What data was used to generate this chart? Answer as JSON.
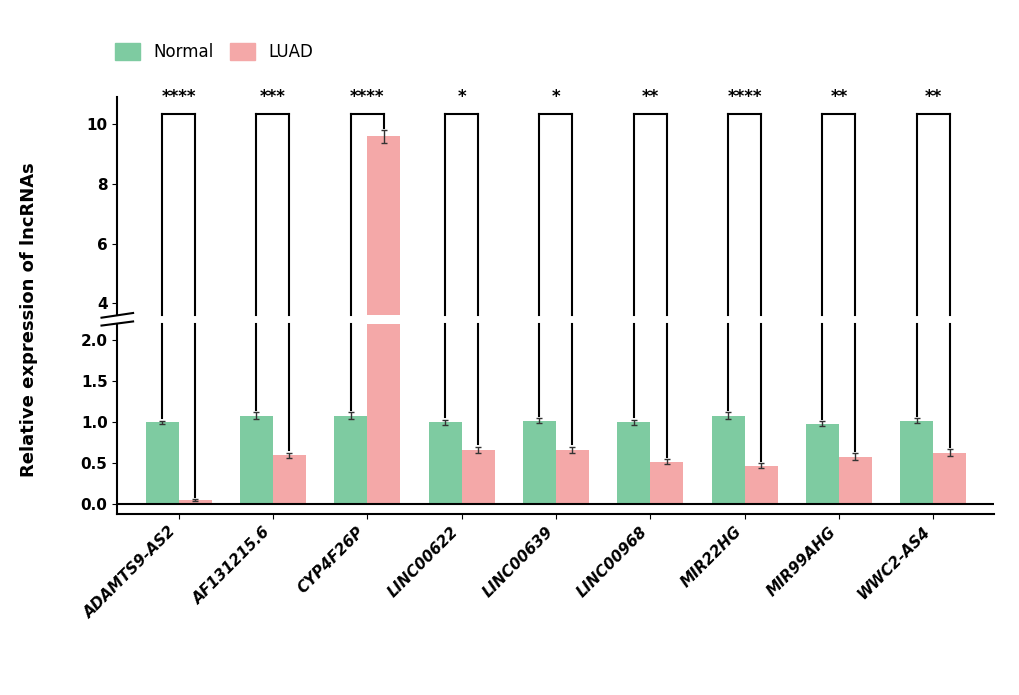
{
  "categories": [
    "ADAMTS9-AS2",
    "AF131215.6",
    "CYP4F26P",
    "LINC00622",
    "LINC00639",
    "LINC00968",
    "MIR22HG",
    "MIR99AHG",
    "WWC2-AS4"
  ],
  "normal_values": [
    1.0,
    1.08,
    1.08,
    1.0,
    1.02,
    1.0,
    1.08,
    0.98,
    1.02
  ],
  "luad_values": [
    0.05,
    0.6,
    9.6,
    0.66,
    0.66,
    0.52,
    0.47,
    0.58,
    0.63
  ],
  "normal_errors": [
    0.02,
    0.04,
    0.04,
    0.03,
    0.03,
    0.03,
    0.04,
    0.03,
    0.03
  ],
  "luad_errors": [
    0.01,
    0.03,
    0.22,
    0.04,
    0.04,
    0.03,
    0.03,
    0.04,
    0.04
  ],
  "normal_color": "#7ECBA1",
  "luad_color": "#F4A8A8",
  "significance": [
    "****",
    "***",
    "****",
    "*",
    "*",
    "**",
    "****",
    "**",
    "**"
  ],
  "ylabel": "Relative expression of lncRNAs",
  "bar_width": 0.35,
  "yticks_lower": [
    0.0,
    0.5,
    1.0,
    1.5,
    2.0
  ],
  "yticks_upper": [
    4,
    6,
    8,
    10
  ],
  "ylim_lower": [
    -0.12,
    2.2
  ],
  "ylim_upper": [
    3.6,
    10.9
  ],
  "background_color": "#ffffff"
}
